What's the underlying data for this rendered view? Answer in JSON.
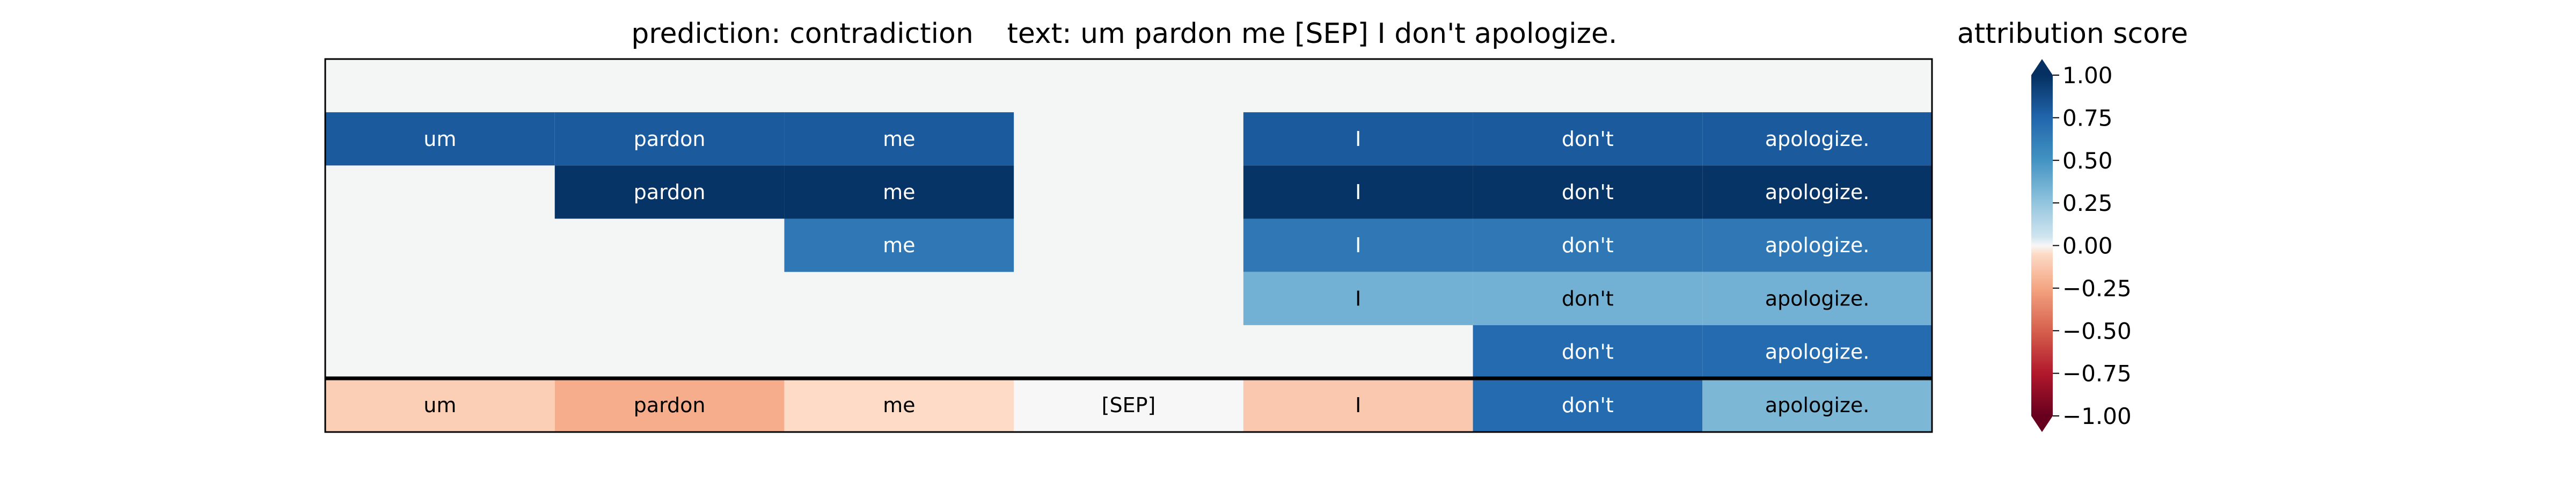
{
  "chart_data": {
    "type": "heatmap",
    "title_left": "prediction:  contradiction",
    "title_right": "text:  um pardon me [SEP] I don't apologize.",
    "colorbar_label": "attribution score",
    "colormap": "RdBu",
    "vmin": -1.0,
    "vmax": 1.0,
    "empty_color": "#f4f6f6",
    "colorbar_ticks": [
      "1.00",
      "0.75",
      "0.50",
      "0.25",
      "0.00",
      "−0.25",
      "−0.50",
      "−0.75",
      "−1.00"
    ],
    "colorbar_tick_values": [
      1.0,
      0.75,
      0.5,
      0.25,
      0.0,
      -0.25,
      -0.5,
      -0.75,
      -1.0
    ],
    "tokens": [
      "um",
      "pardon",
      "me",
      "[SEP]",
      "I",
      "don't",
      "apologize."
    ],
    "layer_rows": [
      [
        null,
        null,
        null,
        null,
        null,
        null,
        null
      ],
      [
        0.8,
        0.8,
        0.8,
        null,
        0.8,
        0.8,
        0.8
      ],
      [
        null,
        0.98,
        0.98,
        null,
        0.98,
        0.98,
        0.98
      ],
      [
        null,
        null,
        0.65,
        null,
        0.65,
        0.65,
        0.65
      ],
      [
        null,
        null,
        null,
        null,
        0.35,
        0.35,
        0.35
      ],
      [
        null,
        null,
        null,
        null,
        null,
        0.72,
        0.72
      ]
    ],
    "summary_row": [
      -0.1,
      -0.22,
      -0.05,
      0.0,
      -0.12,
      0.72,
      0.32
    ]
  }
}
